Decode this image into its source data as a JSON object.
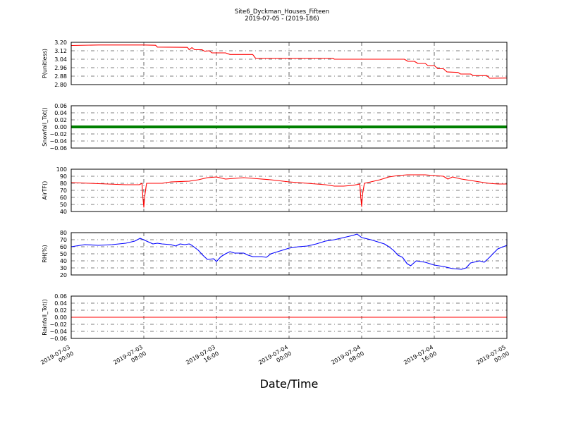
{
  "chart_data": {
    "type": "line",
    "title": "Site6_Dyckman_Houses_Fifteen",
    "subtitle": "2019-07-05 - (2019-186)",
    "xlabel": "Date/Time",
    "x_range": [
      "2019-07-03 00:00",
      "2019-07-05 00:00"
    ],
    "x_ticks": [
      {
        "hours": 0,
        "line1": "2019-07-03",
        "line2": "00:00"
      },
      {
        "hours": 8,
        "line1": "2019-07-03",
        "line2": "08:00"
      },
      {
        "hours": 16,
        "line1": "2019-07-03",
        "line2": "16:00"
      },
      {
        "hours": 24,
        "line1": "2019-07-04",
        "line2": "00:00"
      },
      {
        "hours": 32,
        "line1": "2019-07-04",
        "line2": "08:00"
      },
      {
        "hours": 40,
        "line1": "2019-07-04",
        "line2": "16:00"
      },
      {
        "hours": 48,
        "line1": "2019-07-05",
        "line2": "00:00"
      }
    ],
    "grid": true,
    "panels": [
      {
        "ylabel": "P(unitless)",
        "ylim": [
          2.8,
          3.2
        ],
        "yticks": [
          "3.20",
          "3.12",
          "3.04",
          "2.96",
          "2.88",
          "2.80"
        ],
        "ytick_values": [
          3.2,
          3.12,
          3.04,
          2.96,
          2.88,
          2.8
        ],
        "color": "#ff0000",
        "style": "line",
        "points": [
          [
            0,
            3.17
          ],
          [
            3,
            3.175
          ],
          [
            8,
            3.175
          ],
          [
            9.3,
            3.172
          ],
          [
            9.5,
            3.155
          ],
          [
            12.8,
            3.152
          ],
          [
            13,
            3.13
          ],
          [
            13.3,
            3.15
          ],
          [
            13.6,
            3.13
          ],
          [
            14.4,
            3.13
          ],
          [
            14.7,
            3.115
          ],
          [
            15.2,
            3.12
          ],
          [
            15.5,
            3.1
          ],
          [
            17,
            3.1
          ],
          [
            17.5,
            3.085
          ],
          [
            20,
            3.085
          ],
          [
            20.3,
            3.05
          ],
          [
            28.8,
            3.05
          ],
          [
            29,
            3.04
          ],
          [
            36.7,
            3.04
          ],
          [
            37.1,
            3.02
          ],
          [
            37.8,
            3.02
          ],
          [
            38.2,
            3.0
          ],
          [
            39,
            3.0
          ],
          [
            39.3,
            2.98
          ],
          [
            40,
            2.98
          ],
          [
            40.4,
            2.95
          ],
          [
            41,
            2.95
          ],
          [
            41.4,
            2.92
          ],
          [
            42.6,
            2.915
          ],
          [
            42.9,
            2.9
          ],
          [
            44,
            2.9
          ],
          [
            44.3,
            2.885
          ],
          [
            45.8,
            2.885
          ],
          [
            46.1,
            2.86
          ],
          [
            48,
            2.862
          ]
        ]
      },
      {
        "ylabel": "Snowfall_Tot()",
        "ylim": [
          -0.06,
          0.06
        ],
        "yticks": [
          "0.06",
          "0.04",
          "0.02",
          "0.00",
          "−0.02",
          "−0.04",
          "−0.06"
        ],
        "ytick_values": [
          0.06,
          0.04,
          0.02,
          0.0,
          -0.02,
          -0.04,
          -0.06
        ],
        "color": "#008000",
        "style": "thick",
        "points": [
          [
            0,
            0
          ],
          [
            48,
            0
          ]
        ]
      },
      {
        "ylabel": "AirTF()",
        "ylim": [
          40,
          100
        ],
        "yticks": [
          "100",
          "90",
          "80",
          "70",
          "60",
          "50",
          "40"
        ],
        "ytick_values": [
          100,
          90,
          80,
          70,
          60,
          50,
          40
        ],
        "color": "#ff0000",
        "style": "line",
        "points": [
          [
            0,
            81
          ],
          [
            2,
            80
          ],
          [
            4,
            79
          ],
          [
            6,
            78
          ],
          [
            7.5,
            78
          ],
          [
            7.8,
            80
          ],
          [
            7.9,
            60
          ],
          [
            8.0,
            46
          ],
          [
            8.1,
            62
          ],
          [
            8.3,
            80
          ],
          [
            9,
            80
          ],
          [
            10,
            80
          ],
          [
            11,
            82
          ],
          [
            13,
            83
          ],
          [
            14,
            85
          ],
          [
            15,
            88
          ],
          [
            16,
            89
          ],
          [
            17,
            86
          ],
          [
            18,
            87
          ],
          [
            19,
            88
          ],
          [
            20,
            87
          ],
          [
            22,
            85
          ],
          [
            24,
            82
          ],
          [
            25,
            81
          ],
          [
            26,
            80
          ],
          [
            28,
            78
          ],
          [
            29,
            76
          ],
          [
            30,
            76
          ],
          [
            31,
            77
          ],
          [
            31.8,
            79
          ],
          [
            31.9,
            60
          ],
          [
            32.0,
            47
          ],
          [
            32.1,
            65
          ],
          [
            32.3,
            80
          ],
          [
            33,
            82
          ],
          [
            34,
            85
          ],
          [
            35,
            89
          ],
          [
            36,
            91
          ],
          [
            37,
            92
          ],
          [
            39,
            92
          ],
          [
            40,
            91
          ],
          [
            41,
            90
          ],
          [
            41.5,
            86
          ],
          [
            42,
            89
          ],
          [
            43,
            86
          ],
          [
            44,
            84
          ],
          [
            45,
            82
          ],
          [
            46,
            80
          ],
          [
            47,
            79
          ],
          [
            48,
            79
          ]
        ]
      },
      {
        "ylabel": "RH(%)",
        "ylim": [
          20,
          80
        ],
        "yticks": [
          "80",
          "70",
          "60",
          "50",
          "40",
          "30",
          "20"
        ],
        "ytick_values": [
          80,
          70,
          60,
          50,
          40,
          30,
          20
        ],
        "color": "#0000ff",
        "style": "line",
        "points": [
          [
            0,
            60
          ],
          [
            1.5,
            63
          ],
          [
            3,
            62
          ],
          [
            4.5,
            63
          ],
          [
            6,
            65
          ],
          [
            7,
            68
          ],
          [
            7.6,
            72
          ],
          [
            8.3,
            68
          ],
          [
            9,
            64
          ],
          [
            9.5,
            65
          ],
          [
            10,
            64
          ],
          [
            11,
            63
          ],
          [
            11.5,
            61
          ],
          [
            12,
            64
          ],
          [
            12.5,
            63
          ],
          [
            13,
            64
          ],
          [
            13.3,
            62
          ],
          [
            14,
            55
          ],
          [
            14.5,
            48
          ],
          [
            15,
            42
          ],
          [
            15.7,
            43
          ],
          [
            16,
            39
          ],
          [
            16.5,
            46
          ],
          [
            17,
            50
          ],
          [
            17.5,
            53
          ],
          [
            18,
            51
          ],
          [
            19,
            51
          ],
          [
            19.5,
            48
          ],
          [
            20,
            46
          ],
          [
            21,
            46
          ],
          [
            21.5,
            45
          ],
          [
            22,
            50
          ],
          [
            23,
            54
          ],
          [
            24,
            58
          ],
          [
            25,
            60
          ],
          [
            26,
            61
          ],
          [
            27,
            64
          ],
          [
            28,
            68
          ],
          [
            29,
            70
          ],
          [
            30,
            73
          ],
          [
            31,
            76
          ],
          [
            31.5,
            78
          ],
          [
            32,
            73
          ],
          [
            33,
            70
          ],
          [
            34,
            66
          ],
          [
            34.5,
            64
          ],
          [
            35,
            60
          ],
          [
            35.5,
            55
          ],
          [
            36,
            48
          ],
          [
            36.5,
            45
          ],
          [
            37,
            36
          ],
          [
            37.4,
            33
          ],
          [
            38,
            40
          ],
          [
            39,
            38
          ],
          [
            40,
            34
          ],
          [
            41,
            32
          ],
          [
            42,
            29
          ],
          [
            43,
            28
          ],
          [
            43.5,
            30
          ],
          [
            44,
            37
          ],
          [
            45,
            40
          ],
          [
            45.5,
            38
          ],
          [
            46,
            44
          ],
          [
            47,
            57
          ],
          [
            48,
            62
          ],
          [
            49,
            65
          ],
          [
            50,
            67
          ],
          [
            51,
            68
          ],
          [
            52,
            70
          ],
          [
            52.5,
            71
          ]
        ]
      },
      {
        "ylabel": "Rainfall_Tot()",
        "ylim": [
          -0.06,
          0.06
        ],
        "yticks": [
          "0.06",
          "0.04",
          "0.02",
          "0.00",
          "−0.02",
          "−0.04",
          "−0.06"
        ],
        "ytick_values": [
          0.06,
          0.04,
          0.02,
          0.0,
          -0.02,
          -0.04,
          -0.06
        ],
        "color": "#ff0000",
        "style": "line",
        "points": [
          [
            0,
            0
          ],
          [
            48,
            0
          ]
        ]
      }
    ]
  }
}
